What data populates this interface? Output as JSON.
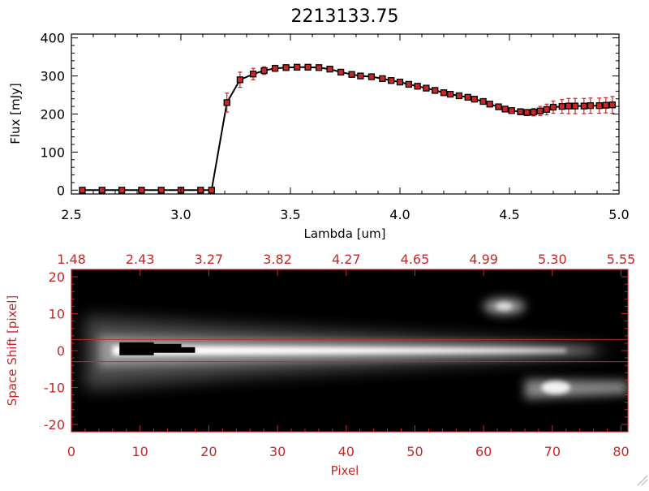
{
  "chart_data": [
    {
      "type": "line",
      "title": "2213133.75",
      "xlabel": "Lambda [um]",
      "ylabel": "Flux [mJy]",
      "xlim": [
        2.5,
        5.0
      ],
      "ylim": [
        -10,
        410
      ],
      "x_ticks": [
        "2.5",
        "3.0",
        "3.5",
        "4.0",
        "4.5",
        "5.0"
      ],
      "y_ticks": [
        "0",
        "100",
        "200",
        "300",
        "400"
      ],
      "grid": false,
      "colors": {
        "line": "#000000",
        "marker": "#c62828",
        "error_bar": "#c62828"
      },
      "series": [
        {
          "x": [
            2.55,
            2.64,
            2.73,
            2.82,
            2.91,
            3.0,
            3.09,
            3.14,
            3.21,
            3.27,
            3.33,
            3.38,
            3.43,
            3.48,
            3.53,
            3.58,
            3.63,
            3.68,
            3.73,
            3.78,
            3.82,
            3.87,
            3.92,
            3.96,
            4.0,
            4.04,
            4.08,
            4.12,
            4.16,
            4.2,
            4.23,
            4.27,
            4.31,
            4.34,
            4.38,
            4.41,
            4.45,
            4.48,
            4.51,
            4.55,
            4.58,
            4.61,
            4.64,
            4.67,
            4.7,
            4.74,
            4.77,
            4.8,
            4.84,
            4.87,
            4.91,
            4.94,
            4.97
          ],
          "y": [
            0,
            0,
            0,
            0,
            0,
            0,
            0,
            0,
            230,
            290,
            305,
            314,
            320,
            322,
            323,
            323,
            322,
            318,
            310,
            304,
            300,
            298,
            293,
            288,
            284,
            278,
            273,
            268,
            262,
            256,
            252,
            248,
            244,
            239,
            233,
            226,
            219,
            213,
            209,
            206,
            204,
            205,
            208,
            212,
            218,
            220,
            221,
            221,
            221,
            222,
            222,
            223,
            224
          ],
          "error": [
            0,
            0,
            0,
            0,
            0,
            0,
            0,
            0,
            25,
            20,
            15,
            10,
            8,
            6,
            6,
            6,
            6,
            6,
            6,
            6,
            6,
            6,
            6,
            6,
            6,
            6,
            6,
            6,
            6,
            6,
            6,
            6,
            6,
            6,
            6,
            6,
            6,
            6,
            6,
            8,
            8,
            10,
            12,
            14,
            16,
            18,
            20,
            20,
            20,
            20,
            20,
            20,
            22
          ]
        }
      ]
    },
    {
      "type": "heatmap",
      "xlabel": "Pixel",
      "ylabel": "Space Shift [pixel]",
      "xlim": [
        0,
        81
      ],
      "ylim": [
        -22,
        22
      ],
      "x_ticks": [
        "0",
        "10",
        "20",
        "30",
        "40",
        "50",
        "60",
        "70",
        "80"
      ],
      "y_ticks": [
        "20",
        "10",
        "0",
        "-10",
        "-20"
      ],
      "top_axis_ticks": [
        "1.48",
        "2.43",
        "3.27",
        "3.82",
        "4.27",
        "4.65",
        "4.99",
        "5.30",
        "5.55"
      ],
      "colormap": "grayscale",
      "extraction_lines_y": [
        3,
        -3
      ],
      "colors": {
        "axes": "#c62828",
        "extraction_lines": "#c62828",
        "background": "#000000",
        "trace": "#ffffff"
      },
      "features": [
        {
          "name": "main trace",
          "x_start": 2,
          "x_end": 78,
          "y_center": 0
        },
        {
          "name": "saturated region",
          "x_start": 7,
          "x_end": 18,
          "y_center": 0.5
        },
        {
          "name": "upper source",
          "x_center": 63,
          "y_center": 12
        },
        {
          "name": "lower source",
          "x_start": 66,
          "x_end": 81,
          "y_center": -10
        }
      ]
    }
  ]
}
